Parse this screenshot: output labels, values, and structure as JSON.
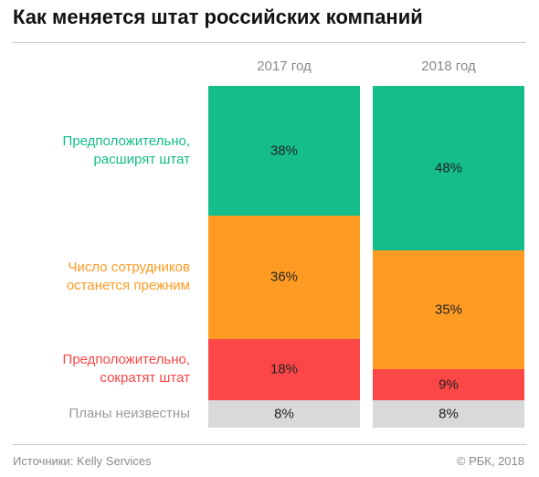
{
  "title": "Как меняется штат российских компаний",
  "footer": {
    "source": "Источники: Kelly Services",
    "copyright": "© РБК, 2018"
  },
  "colors": {
    "expand": "#14bd8a",
    "same": "#ff9b23",
    "reduce": "#fb4747",
    "unknown": "#d9d9d9"
  },
  "chart_data": {
    "type": "bar",
    "stacked": true,
    "normalized_percent": true,
    "categories": [
      "2017 год",
      "2018 год"
    ],
    "series": [
      {
        "name": "Предположительно, расширят штат",
        "color": "#14bd8a",
        "values": [
          38,
          48
        ]
      },
      {
        "name": "Число сотрудников останется прежним",
        "color": "#ff9b23",
        "values": [
          36,
          35
        ]
      },
      {
        "name": "Предположительно, сократят штат",
        "color": "#fb4747",
        "values": [
          18,
          9
        ]
      },
      {
        "name": "Планы неизвестны",
        "color": "#d9d9d9",
        "values": [
          8,
          8
        ]
      }
    ],
    "row_labels": [
      {
        "lines": [
          "Предположительно,",
          "расширят штат"
        ],
        "color": "#14bd8a"
      },
      {
        "lines": [
          "Число сотрудников",
          "останется прежним"
        ],
        "color": "#ff9b23"
      },
      {
        "lines": [
          "Предположительно,",
          "сократят штат"
        ],
        "color": "#fb4747"
      },
      {
        "lines": [
          "Планы неизвестны"
        ],
        "color": "#9a9a9a"
      }
    ],
    "value_suffix": "%"
  }
}
